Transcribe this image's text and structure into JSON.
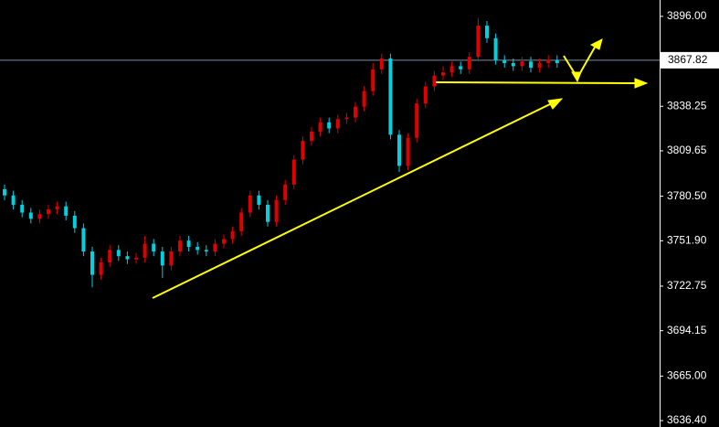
{
  "chart_data": {
    "type": "candlestick",
    "up_color": "#e00000",
    "down_color": "#00d0e0",
    "ylim": [
      3632.3,
      3906.5
    ],
    "yticks": [
      {
        "value": 3896,
        "label": "3896.00"
      },
      3838.25,
      3809.65,
      {
        "value": 3780.5,
        "label": "3780.50"
      },
      {
        "value": 3751.9,
        "label": "3751.90"
      },
      3722.75,
      3694.15,
      {
        "value": 3665,
        "label": "3665.00"
      },
      {
        "value": 3636.4,
        "label": "3636.40"
      }
    ],
    "current_price": 3867.82,
    "open": [
      3785,
      3781,
      3775,
      3770,
      3766,
      3769,
      3772,
      3774,
      3768,
      3760,
      3745,
      3730,
      3738,
      3746,
      3742,
      3740,
      3741,
      3750,
      3745,
      3736,
      3745,
      3752,
      3748,
      3746,
      3745,
      3750,
      3753,
      3758,
      3770,
      3781,
      3775,
      3764,
      3778,
      3788,
      3804,
      3816,
      3822,
      3828,
      3824,
      3830,
      3831,
      3838,
      3848,
      3862,
      3869,
      3820,
      3800,
      3818,
      3840,
      3851,
      3858,
      3860,
      3864,
      3862,
      3870,
      3890,
      3882,
      3868,
      3866,
      3864,
      3867,
      3863,
      3866,
      3868
    ],
    "high": [
      3788,
      3784,
      3778,
      3773,
      3772,
      3775,
      3777,
      3777,
      3771,
      3763,
      3748,
      3741,
      3749,
      3749,
      3745,
      3744,
      3755,
      3753,
      3748,
      3748,
      3755,
      3755,
      3751,
      3749,
      3753,
      3756,
      3761,
      3773,
      3784,
      3784,
      3778,
      3781,
      3791,
      3807,
      3819,
      3825,
      3831,
      3831,
      3833,
      3834,
      3841,
      3851,
      3866,
      3872,
      3872,
      3823,
      3821,
      3843,
      3854,
      3861,
      3864,
      3867,
      3867,
      3873,
      3895,
      3893,
      3885,
      3871,
      3869,
      3870,
      3870,
      3869,
      3871,
      3871
    ],
    "low": [
      3778,
      3772,
      3767,
      3763,
      3763,
      3766,
      3769,
      3765,
      3757,
      3742,
      3722,
      3727,
      3735,
      3739,
      3737,
      3737,
      3738,
      3742,
      3728,
      3733,
      3742,
      3745,
      3743,
      3742,
      3742,
      3747,
      3750,
      3755,
      3767,
      3772,
      3761,
      3761,
      3775,
      3785,
      3801,
      3813,
      3819,
      3821,
      3821,
      3827,
      3828,
      3835,
      3845,
      3859,
      3817,
      3796,
      3797,
      3815,
      3837,
      3848,
      3855,
      3857,
      3859,
      3859,
      3867,
      3879,
      3865,
      3863,
      3861,
      3861,
      3860,
      3860,
      3863,
      3863
    ],
    "close": [
      3781,
      3775,
      3770,
      3766,
      3769,
      3772,
      3774,
      3768,
      3760,
      3745,
      3730,
      3738,
      3746,
      3742,
      3740,
      3741,
      3750,
      3745,
      3736,
      3745,
      3752,
      3748,
      3746,
      3745,
      3750,
      3753,
      3758,
      3770,
      3781,
      3775,
      3764,
      3778,
      3788,
      3804,
      3816,
      3822,
      3828,
      3824,
      3830,
      3831,
      3838,
      3848,
      3862,
      3869,
      3820,
      3800,
      3818,
      3840,
      3851,
      3858,
      3860,
      3864,
      3862,
      3870,
      3890,
      3882,
      3868,
      3866,
      3864,
      3867,
      3863,
      3866,
      3868,
      3866
    ]
  }
}
